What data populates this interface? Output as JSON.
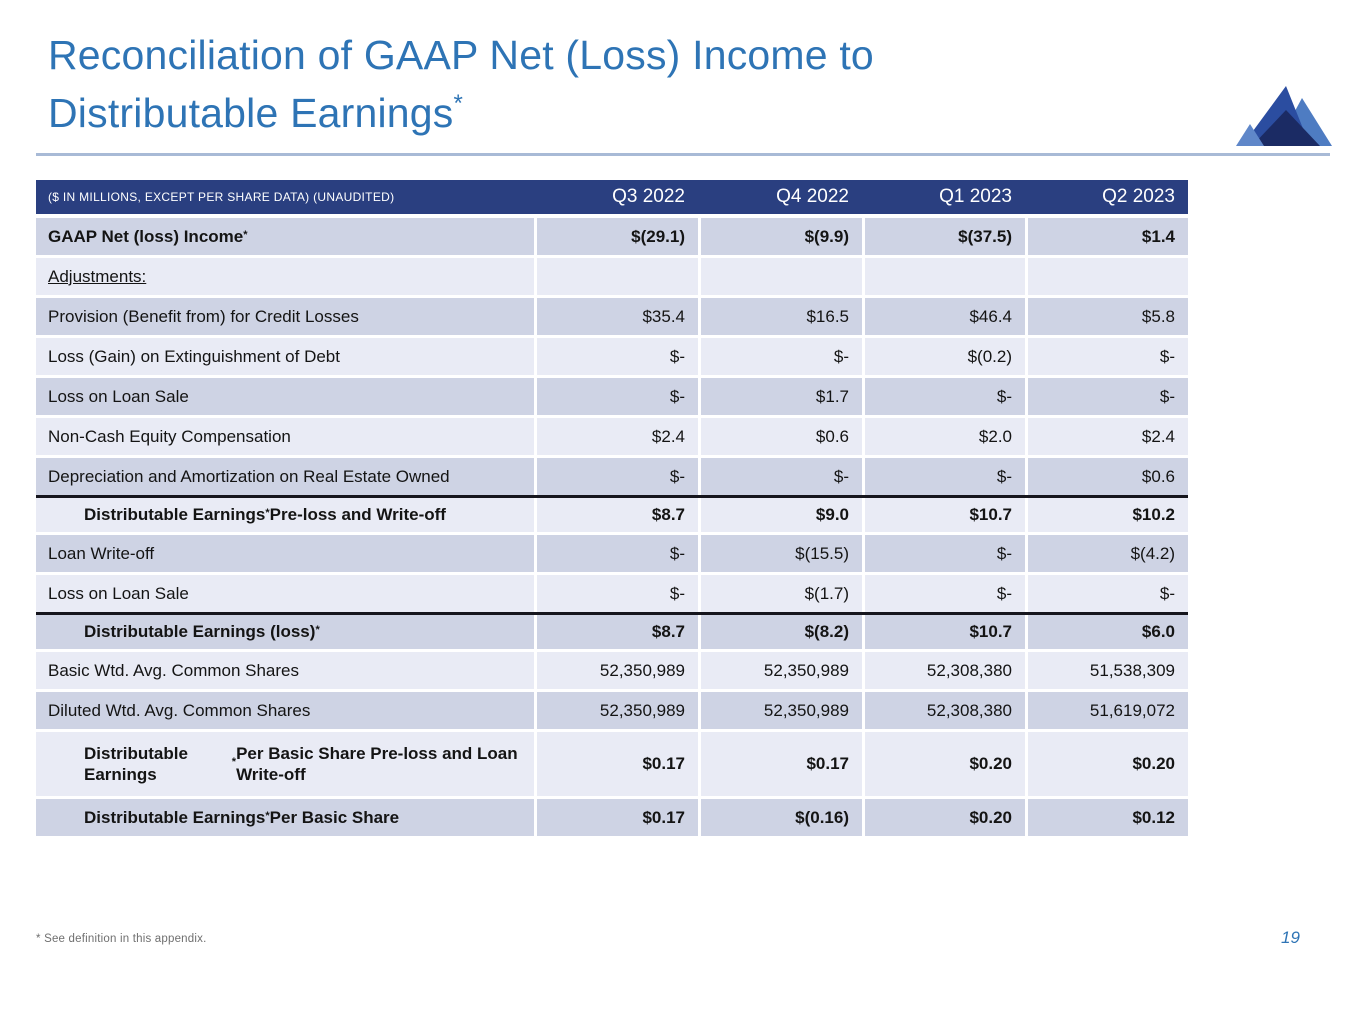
{
  "slide": {
    "title_line1": "Reconciliation of GAAP Net (Loss) Income to",
    "title_line2": "Distributable Earnings",
    "title_asterisk": "*",
    "footnote": "* See definition in this appendix.",
    "page_number": "19"
  },
  "colors": {
    "title_blue": "#2E74B5",
    "header_navy": "#2A3F80",
    "band_dark": "#CED3E4",
    "band_light": "#E9EBF5",
    "rule_blue": "#A8BAD6",
    "total_border": "#15151d",
    "logo_main_blue": "#2B4DA0",
    "logo_right_blue": "#4E7CC2",
    "logo_dark_navy": "#1B2B64",
    "logo_light_blue": "#5F87C9"
  },
  "logo": {
    "name": "mountain-logo"
  },
  "table": {
    "header": {
      "label": "($ IN MILLIONS, EXCEPT PER SHARE DATA) (UNAUDITED)",
      "columns": [
        "Q3 2022",
        "Q4 2022",
        "Q1 2023",
        "Q2 2023"
      ]
    },
    "rows": [
      {
        "label": "GAAP Net (loss) Income*",
        "values": [
          "$(29.1)",
          "$(9.9)",
          "$(37.5)",
          "$1.4"
        ],
        "band": "dark",
        "bold": true
      },
      {
        "label": "Adjustments:",
        "values": [
          "",
          "",
          "",
          ""
        ],
        "band": "light",
        "underline": true
      },
      {
        "label": "Provision (Benefit from) for Credit Losses",
        "values": [
          "$35.4",
          "$16.5",
          "$46.4",
          "$5.8"
        ],
        "band": "dark"
      },
      {
        "label": "Loss (Gain) on Extinguishment of Debt",
        "values": [
          "$-",
          "$-",
          "$(0.2)",
          "$-"
        ],
        "band": "light"
      },
      {
        "label": "Loss on Loan Sale",
        "values": [
          "$-",
          "$1.7",
          "$-",
          "$-"
        ],
        "band": "dark"
      },
      {
        "label": "Non-Cash Equity Compensation",
        "values": [
          "$2.4",
          "$0.6",
          "$2.0",
          "$2.4"
        ],
        "band": "light"
      },
      {
        "label": "Depreciation and Amortization on Real Estate Owned",
        "values": [
          "$-",
          "$-",
          "$-",
          "$0.6"
        ],
        "band": "dark"
      },
      {
        "label": "Distributable Earnings* Pre-loss and Write-off",
        "values": [
          "$8.7",
          "$9.0",
          "$10.7",
          "$10.2"
        ],
        "band": "light",
        "bold": true,
        "indent": true,
        "topline": true
      },
      {
        "label": "Loan Write-off",
        "values": [
          "$-",
          "$(15.5)",
          "$-",
          "$(4.2)"
        ],
        "band": "dark"
      },
      {
        "label": "Loss on Loan Sale",
        "values": [
          "$-",
          "$(1.7)",
          "$-",
          "$-"
        ],
        "band": "light"
      },
      {
        "label": "Distributable Earnings (loss)*",
        "values": [
          "$8.7",
          "$(8.2)",
          "$10.7",
          "$6.0"
        ],
        "band": "dark",
        "bold": true,
        "indent": true,
        "topline": true
      },
      {
        "label": "Basic Wtd. Avg. Common Shares",
        "values": [
          "52,350,989",
          "52,350,989",
          "52,308,380",
          "51,538,309"
        ],
        "band": "light"
      },
      {
        "label": "Diluted Wtd. Avg. Common Shares",
        "values": [
          "52,350,989",
          "52,350,989",
          "52,308,380",
          "51,619,072"
        ],
        "band": "dark"
      },
      {
        "label": "Distributable Earnings* Per Basic Share Pre-loss and Loan Write-off",
        "values": [
          "$0.17",
          "$0.17",
          "$0.20",
          "$0.20"
        ],
        "band": "light",
        "bold": true,
        "indent": true,
        "tall": true
      },
      {
        "label": "Distributable Earnings* Per Basic Share",
        "values": [
          "$0.17",
          "$(0.16)",
          "$0.20",
          "$0.12"
        ],
        "band": "dark",
        "bold": true,
        "indent": true
      }
    ]
  }
}
